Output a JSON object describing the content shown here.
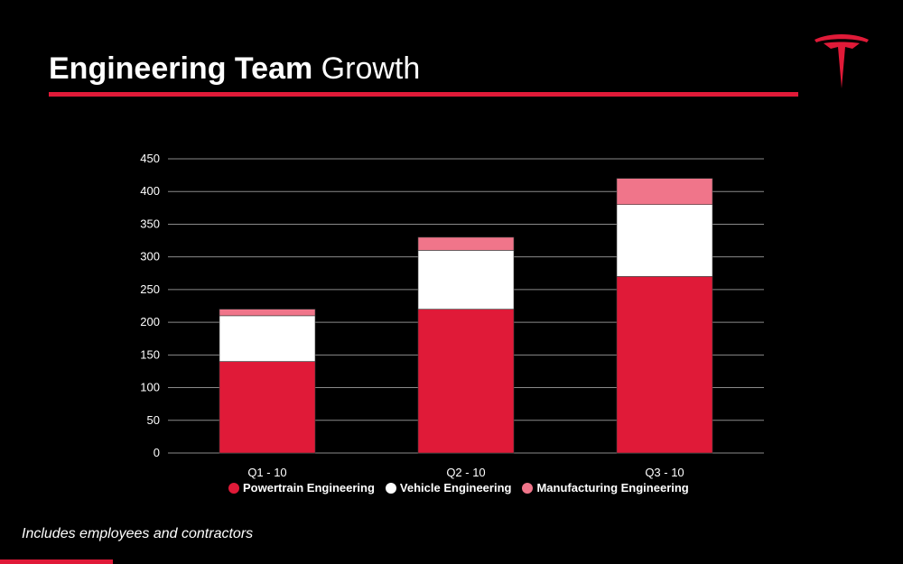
{
  "slide": {
    "title_bold": "Engineering Team",
    "title_light": "Growth",
    "footnote": "Includes employees and contractors"
  },
  "colors": {
    "accent": "#e01a38",
    "powertrain": "#e01a38",
    "vehicle": "#ffffff",
    "manufacturing": "#f0758a",
    "grid": "#8a8a8a",
    "background": "#000000"
  },
  "chart_data": {
    "type": "bar",
    "stacked": true,
    "categories": [
      "Q1 - 10",
      "Q2 - 10",
      "Q3 - 10"
    ],
    "series": [
      {
        "name": "Powertrain Engineering",
        "values": [
          140,
          220,
          270
        ]
      },
      {
        "name": "Vehicle Engineering",
        "values": [
          70,
          90,
          110
        ]
      },
      {
        "name": "Manufacturing Engineering",
        "values": [
          10,
          20,
          40
        ]
      }
    ],
    "yticks": [
      0,
      50,
      100,
      150,
      200,
      250,
      300,
      350,
      400,
      450
    ],
    "ylim": [
      0,
      450
    ],
    "grid": true,
    "legend_position": "bottom"
  }
}
